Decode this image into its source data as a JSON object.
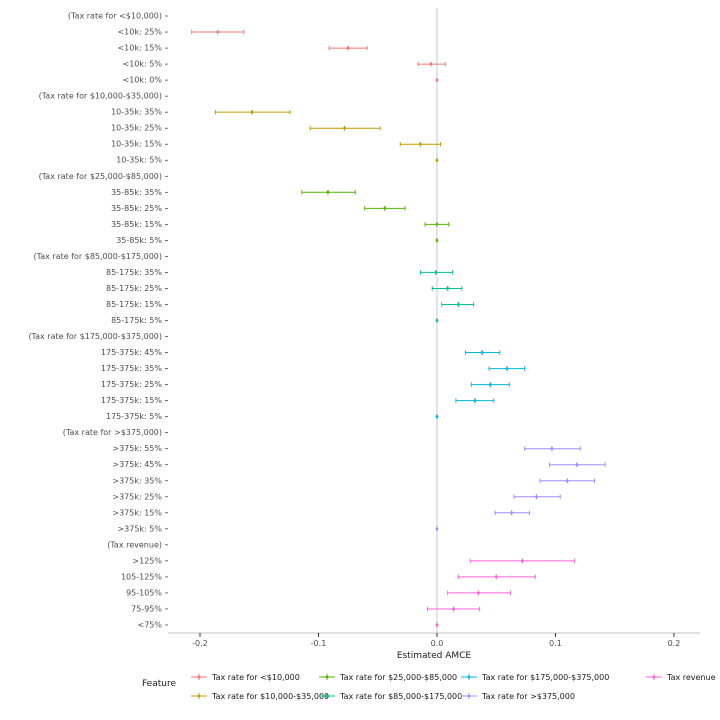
{
  "chart_data": {
    "type": "scatter",
    "subtype": "horizontal-errorbar-coefficient-plot",
    "title": "",
    "xlabel": "Estimated AMCE",
    "ylabel": "",
    "axis": {
      "xlim": [
        -0.227,
        0.222
      ],
      "xticks": [
        -0.2,
        -0.1,
        0,
        0.1,
        0.2
      ],
      "xtick_labels": [
        "-0.2",
        "-0.1",
        "0.0",
        "0.1",
        "0.2"
      ],
      "zero_line": true,
      "grid": false
    },
    "groups": [
      {
        "name": "Tax rate for <$10,000",
        "color": "#F8766D"
      },
      {
        "name": "Tax rate for $10,000-$35,000",
        "color": "#C49A00"
      },
      {
        "name": "Tax rate for $25,000-$85,000",
        "color": "#53B400"
      },
      {
        "name": "Tax rate for $85,000-$175,000",
        "color": "#00C094"
      },
      {
        "name": "Tax rate for $175,000-$375,000",
        "color": "#00B6EB"
      },
      {
        "name": "Tax rate for >$375,000",
        "color": "#A58AFF"
      },
      {
        "name": "Tax revenue",
        "color": "#FB61D7"
      }
    ],
    "legend": {
      "title": "Feature",
      "position": "bottom",
      "columns": 4,
      "byrow": false
    },
    "rows": [
      {
        "label": "(Tax rate for <$10,000)",
        "header": true
      },
      {
        "label": "<10k: 25%",
        "group": 0,
        "estimate": -0.185,
        "lower": -0.207,
        "upper": -0.163
      },
      {
        "label": "<10k: 15%",
        "group": 0,
        "estimate": -0.075,
        "lower": -0.091,
        "upper": -0.059
      },
      {
        "label": "<10k: 5%",
        "group": 0,
        "estimate": -0.005,
        "lower": -0.016,
        "upper": 0.007
      },
      {
        "label": "<10k: 0%",
        "group": 0,
        "estimate": 0,
        "lower": 0,
        "upper": 0,
        "baseline": true
      },
      {
        "label": "(Tax rate for $10,000-$35,000)",
        "header": true
      },
      {
        "label": "10-35k: 35%",
        "group": 1,
        "estimate": -0.156,
        "lower": -0.187,
        "upper": -0.124
      },
      {
        "label": "10-35k: 25%",
        "group": 1,
        "estimate": -0.078,
        "lower": -0.107,
        "upper": -0.048
      },
      {
        "label": "10-35k: 15%",
        "group": 1,
        "estimate": -0.014,
        "lower": -0.031,
        "upper": 0.003
      },
      {
        "label": "10-35k: 5%",
        "group": 1,
        "estimate": 0,
        "lower": 0,
        "upper": 0,
        "baseline": true
      },
      {
        "label": "(Tax rate for $25,000-$85,000)",
        "header": true
      },
      {
        "label": "35-85k: 35%",
        "group": 2,
        "estimate": -0.092,
        "lower": -0.114,
        "upper": -0.069
      },
      {
        "label": "35-85k: 25%",
        "group": 2,
        "estimate": -0.044,
        "lower": -0.061,
        "upper": -0.027
      },
      {
        "label": "35-85k: 15%",
        "group": 2,
        "estimate": 0,
        "lower": -0.01,
        "upper": 0.01
      },
      {
        "label": "35-85k: 5%",
        "group": 2,
        "estimate": 0,
        "lower": 0,
        "upper": 0,
        "baseline": true
      },
      {
        "label": "(Tax rate for $85,000-$175,000)",
        "header": true
      },
      {
        "label": "85-175k: 35%",
        "group": 3,
        "estimate": -0.001,
        "lower": -0.014,
        "upper": 0.013
      },
      {
        "label": "85-175k: 25%",
        "group": 3,
        "estimate": 0.009,
        "lower": -0.004,
        "upper": 0.021
      },
      {
        "label": "85-175k: 15%",
        "group": 3,
        "estimate": 0.018,
        "lower": 0.004,
        "upper": 0.031
      },
      {
        "label": "85-175k: 5%",
        "group": 3,
        "estimate": 0,
        "lower": 0,
        "upper": 0,
        "baseline": true
      },
      {
        "label": "(Tax rate for $175,000-$375,000)",
        "header": true
      },
      {
        "label": "175-375k: 45%",
        "group": 4,
        "estimate": 0.038,
        "lower": 0.024,
        "upper": 0.053
      },
      {
        "label": "175-375k: 35%",
        "group": 4,
        "estimate": 0.059,
        "lower": 0.044,
        "upper": 0.074
      },
      {
        "label": "175-375k: 25%",
        "group": 4,
        "estimate": 0.045,
        "lower": 0.029,
        "upper": 0.061
      },
      {
        "label": "175-375k: 15%",
        "group": 4,
        "estimate": 0.032,
        "lower": 0.016,
        "upper": 0.048
      },
      {
        "label": "175-375k: 5%",
        "group": 4,
        "estimate": 0,
        "lower": 0,
        "upper": 0,
        "baseline": true
      },
      {
        "label": "(Tax rate for >$375,000)",
        "header": true
      },
      {
        "label": ">375k: 55%",
        "group": 5,
        "estimate": 0.097,
        "lower": 0.074,
        "upper": 0.121
      },
      {
        "label": ">375k: 45%",
        "group": 5,
        "estimate": 0.118,
        "lower": 0.095,
        "upper": 0.142
      },
      {
        "label": ">375k: 35%",
        "group": 5,
        "estimate": 0.11,
        "lower": 0.087,
        "upper": 0.133
      },
      {
        "label": ">375k: 25%",
        "group": 5,
        "estimate": 0.084,
        "lower": 0.065,
        "upper": 0.104
      },
      {
        "label": ">375k: 15%",
        "group": 5,
        "estimate": 0.063,
        "lower": 0.049,
        "upper": 0.078
      },
      {
        "label": ">375k: 5%",
        "group": 5,
        "estimate": 0,
        "lower": 0,
        "upper": 0,
        "baseline": true
      },
      {
        "label": "(Tax revenue)",
        "header": true
      },
      {
        "label": ">125%",
        "group": 6,
        "estimate": 0.072,
        "lower": 0.028,
        "upper": 0.116
      },
      {
        "label": "105-125%",
        "group": 6,
        "estimate": 0.05,
        "lower": 0.018,
        "upper": 0.083
      },
      {
        "label": "95-105%",
        "group": 6,
        "estimate": 0.035,
        "lower": 0.009,
        "upper": 0.062
      },
      {
        "label": "75-95%",
        "group": 6,
        "estimate": 0.014,
        "lower": -0.008,
        "upper": 0.036
      },
      {
        "label": "<75%",
        "group": 6,
        "estimate": 0,
        "lower": 0,
        "upper": 0,
        "baseline": true
      }
    ]
  }
}
